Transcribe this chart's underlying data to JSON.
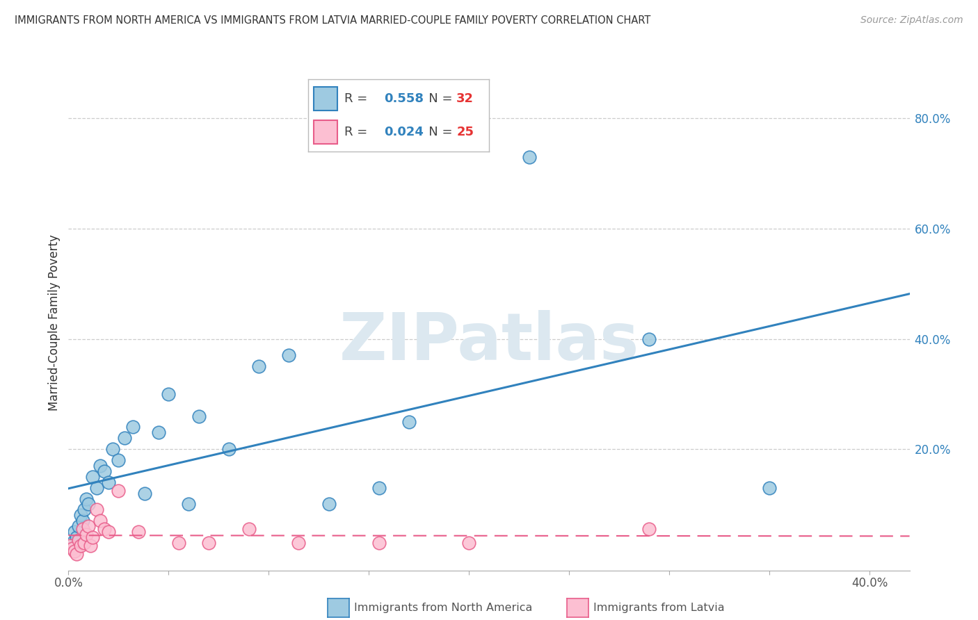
{
  "title": "IMMIGRANTS FROM NORTH AMERICA VS IMMIGRANTS FROM LATVIA MARRIED-COUPLE FAMILY POVERTY CORRELATION CHART",
  "source": "Source: ZipAtlas.com",
  "ylabel": "Married-Couple Family Poverty",
  "xlim": [
    0.0,
    0.42
  ],
  "ylim": [
    -0.02,
    0.88
  ],
  "ytick_labels_right": [
    "80.0%",
    "60.0%",
    "40.0%",
    "20.0%"
  ],
  "ytick_positions_right": [
    0.8,
    0.6,
    0.4,
    0.2
  ],
  "blue_R": 0.558,
  "blue_N": 32,
  "pink_R": 0.024,
  "pink_N": 25,
  "blue_color": "#9ecae1",
  "pink_color": "#fcbfd2",
  "line_blue": "#3182bd",
  "line_pink": "#e85d8a",
  "watermark_color": "#dce8f0",
  "blue_scatter_x": [
    0.002,
    0.003,
    0.004,
    0.005,
    0.006,
    0.007,
    0.008,
    0.009,
    0.01,
    0.012,
    0.014,
    0.016,
    0.018,
    0.02,
    0.022,
    0.025,
    0.028,
    0.032,
    0.038,
    0.045,
    0.05,
    0.06,
    0.065,
    0.08,
    0.095,
    0.11,
    0.13,
    0.155,
    0.17,
    0.23,
    0.29,
    0.35
  ],
  "blue_scatter_y": [
    0.03,
    0.05,
    0.04,
    0.06,
    0.08,
    0.07,
    0.09,
    0.11,
    0.1,
    0.15,
    0.13,
    0.17,
    0.16,
    0.14,
    0.2,
    0.18,
    0.22,
    0.24,
    0.12,
    0.23,
    0.3,
    0.1,
    0.26,
    0.2,
    0.35,
    0.37,
    0.1,
    0.13,
    0.25,
    0.73,
    0.4,
    0.13
  ],
  "pink_scatter_x": [
    0.001,
    0.002,
    0.003,
    0.004,
    0.005,
    0.006,
    0.007,
    0.008,
    0.009,
    0.01,
    0.011,
    0.012,
    0.014,
    0.016,
    0.018,
    0.02,
    0.025,
    0.035,
    0.055,
    0.07,
    0.09,
    0.115,
    0.155,
    0.2,
    0.29
  ],
  "pink_scatter_y": [
    0.025,
    0.02,
    0.015,
    0.01,
    0.035,
    0.025,
    0.055,
    0.03,
    0.045,
    0.06,
    0.025,
    0.04,
    0.09,
    0.07,
    0.055,
    0.05,
    0.125,
    0.05,
    0.03,
    0.03,
    0.055,
    0.03,
    0.03,
    0.03,
    0.055
  ],
  "legend_R_color": "#3182bd",
  "legend_N_color": "#e63333",
  "bottom_label_blue": "Immigrants from North America",
  "bottom_label_pink": "Immigrants from Latvia"
}
